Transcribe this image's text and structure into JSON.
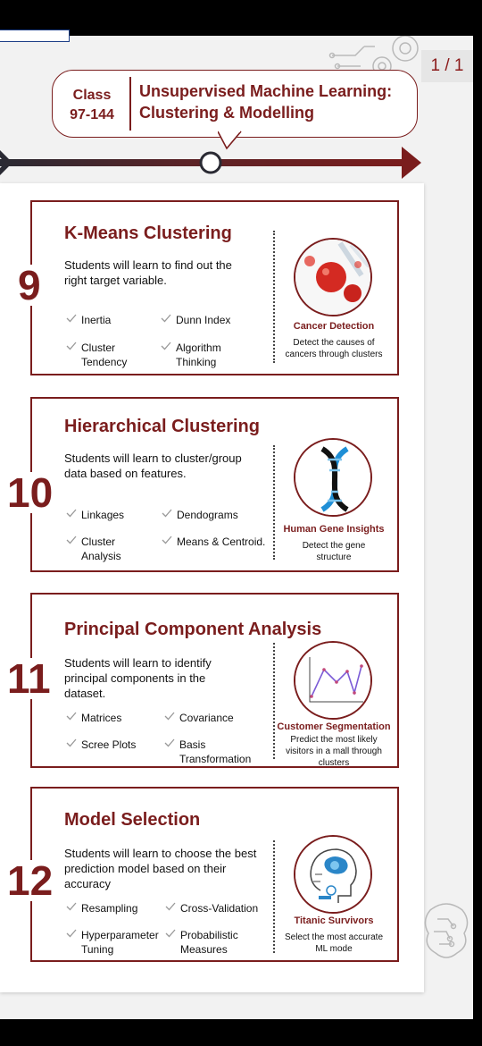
{
  "viewer": {
    "page_counter": "1 / 1"
  },
  "header": {
    "class_label": "Class",
    "class_range": "97-144",
    "title_line1": "Unsupervised Machine Learning:",
    "title_line2": "Clustering & Modelling"
  },
  "colors": {
    "accent": "#7a1d1d",
    "timeline_dark": "#2a2a33"
  },
  "modules": [
    {
      "number": "9",
      "title": "K-Means Clustering",
      "description": "Students will learn to find out the right target variable.",
      "topics": [
        "Inertia",
        "Dunn Index",
        "Cluster Tendency",
        "Algorithm Thinking"
      ],
      "app_title": "Cancer Detection",
      "app_desc": "Detect the causes of cancers through clusters",
      "icon": "cancer-cells-icon"
    },
    {
      "number": "10",
      "title": "Hierarchical Clustering",
      "description": "Students will learn to cluster/group data based on features.",
      "topics": [
        "Linkages",
        "Dendograms",
        "Cluster Analysis",
        "Means & Centroid."
      ],
      "app_title": "Human Gene Insights",
      "app_desc": "Detect the gene structure",
      "icon": "dna-icon"
    },
    {
      "number": "11",
      "title": "Principal Component Analysis",
      "description": "Students will learn to identify principal components in the dataset.",
      "topics": [
        "Matrices",
        "Covariance",
        "Scree Plots",
        "Basis Transformation"
      ],
      "app_title": "Customer Segmentation",
      "app_desc": "Predict the most likely visitors in a mall through clusters",
      "icon": "line-plot-icon"
    },
    {
      "number": "12",
      "title": "Model Selection",
      "description": "Students will learn to choose the best prediction model based on their accuracy",
      "topics": [
        "Resampling",
        "Cross-Validation",
        "Hyperparameter Tuning",
        "Probabilistic Measures"
      ],
      "app_title": "Titanic Survivors",
      "app_desc": "Select the most accurate ML mode",
      "icon": "robot-head-icon"
    }
  ]
}
